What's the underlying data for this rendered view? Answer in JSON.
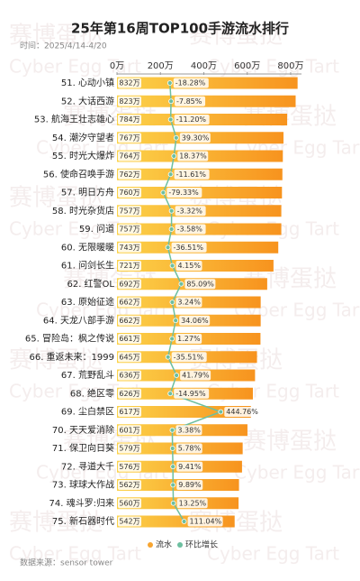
{
  "chart_data": {
    "type": "bar",
    "title": "25年第16周TOP100手游流水排行",
    "subtitle": "时间：2025/4/14-4/20",
    "source": "数据来源：sensor tower",
    "watermark": [
      "赛博蛋挞",
      "Cyber Egg Tart"
    ],
    "categories": [
      "51. 心动小镇",
      "52. 大话西游",
      "53. 航海王壮志雄心",
      "54. 潮汐守望者",
      "55. 时光大爆炸",
      "56. 使命召唤手游",
      "57. 明日方舟",
      "58. 时光杂货店",
      "59. 问道",
      "60. 无限暖暖",
      "61. 问剑长生",
      "62. 红警OL",
      "63. 原始征途",
      "64. 天龙八部手游",
      "65. 冒险岛：枫之传说",
      "66. 重返未来：1999",
      "67. 荒野乱斗",
      "68. 绝区零",
      "69. 尘白禁区",
      "70. 天天爱消除",
      "71. 保卫向日葵",
      "72. 寻道大千",
      "73. 球球大作战",
      "74. 魂斗罗:归来",
      "75. 新石器时代"
    ],
    "series": [
      {
        "name": "流水",
        "color": "#f7a531",
        "values": [
          832,
          823,
          784,
          767,
          764,
          762,
          760,
          757,
          757,
          743,
          721,
          692,
          662,
          662,
          661,
          645,
          636,
          626,
          617,
          601,
          579,
          576,
          562,
          560,
          542
        ],
        "value_labels": [
          "832万",
          "823万",
          "784万",
          "767万",
          "764万",
          "762万",
          "760万",
          "757万",
          "757万",
          "743万",
          "721万",
          "692万",
          "662万",
          "662万",
          "661万",
          "645万",
          "636万",
          "626万",
          "617万",
          "601万",
          "579万",
          "576万",
          "562万",
          "560万",
          "542万"
        ]
      },
      {
        "name": "环比增长",
        "color": "#6dbfa0",
        "axis": "x2",
        "values": [
          -18.28,
          -7.85,
          -11.2,
          39.3,
          18.37,
          -11.61,
          -79.33,
          -3.32,
          -3.58,
          -36.51,
          4.15,
          85.09,
          3.24,
          34.06,
          1.27,
          -35.51,
          41.79,
          -14.95,
          444.76,
          3.38,
          5.78,
          9.41,
          9.89,
          13.25,
          111.04
        ],
        "value_labels": [
          "-18.28%",
          "-7.85%",
          "-11.20%",
          "39.30%",
          "18.37%",
          "-11.61%",
          "-79.33%",
          "-3.32%",
          "-3.58%",
          "-36.51%",
          "4.15%",
          "85.09%",
          "3.24%",
          "34.06%",
          "1.27%",
          "-35.51%",
          "41.79%",
          "-14.95%",
          "444.76%",
          "3.38%",
          "5.78%",
          "9.41%",
          "9.89%",
          "13.25%",
          "111.04%"
        ]
      }
    ],
    "xlim": [
      0,
      850
    ],
    "xticks": [
      {
        "value": 0,
        "label": "0万"
      },
      {
        "value": 200,
        "label": "200万"
      },
      {
        "value": 400,
        "label": "400万"
      },
      {
        "value": 600,
        "label": "600万"
      },
      {
        "value": 800,
        "label": "800万"
      }
    ],
    "x2lim": [
      -500,
      1180
    ],
    "legend": "bottom"
  }
}
